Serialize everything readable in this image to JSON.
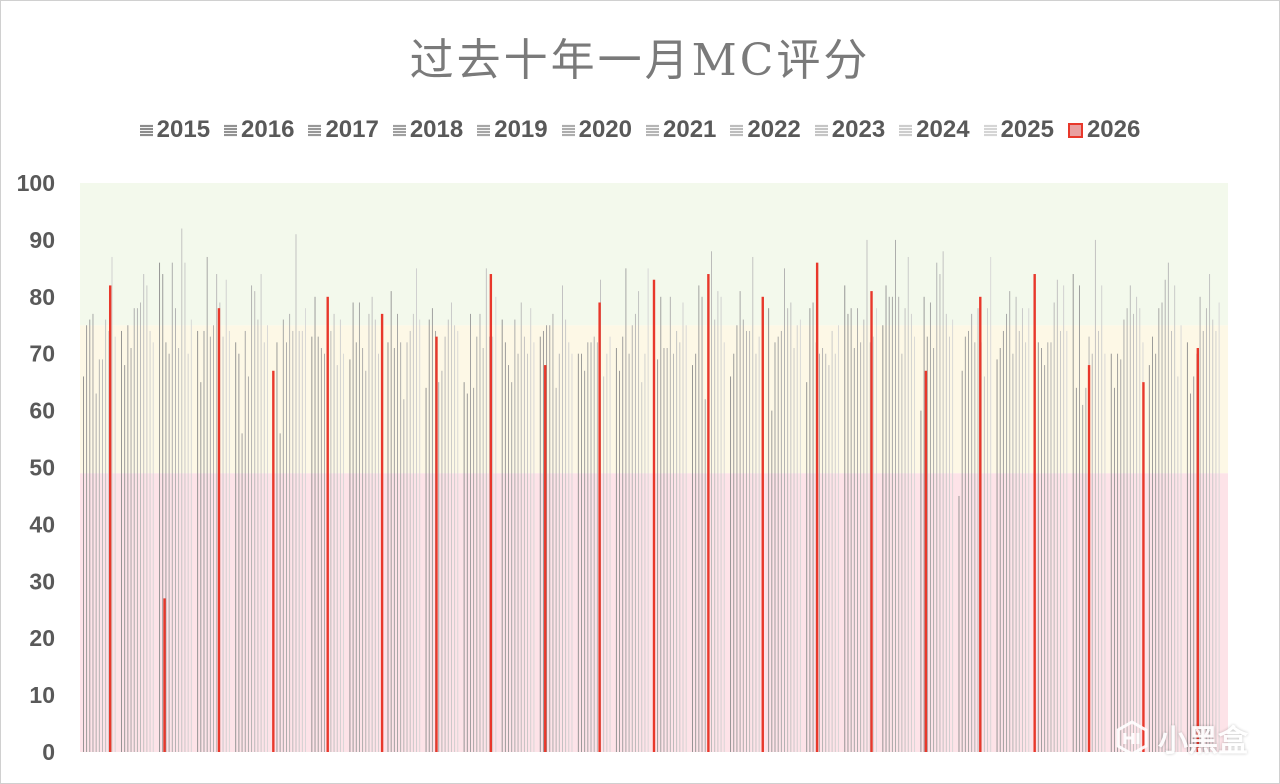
{
  "chart_data": {
    "type": "bar",
    "title": "过去十年一月MC评分",
    "xlabel": "",
    "ylabel": "",
    "ylim": [
      0,
      100
    ],
    "yticks": [
      0,
      10,
      20,
      30,
      40,
      50,
      60,
      70,
      80,
      90,
      100
    ],
    "grid": false,
    "legend_position": "top",
    "bands": [
      {
        "from": 0,
        "to": 49,
        "color": "#fde3e8"
      },
      {
        "from": 49,
        "to": 75,
        "color": "#fdf8e6"
      },
      {
        "from": 75,
        "to": 100,
        "color": "#f3f9ec"
      }
    ],
    "series": [
      {
        "name": "2015",
        "color": "#8c8c8c",
        "values": [
          66,
          74,
          86,
          74,
          72,
          56,
          73,
          69,
          72,
          64,
          65,
          76,
          73,
          70,
          71,
          73,
          68,
          66,
          78,
          65,
          82,
          75,
          60,
          45,
          69,
          84,
          84,
          70,
          68,
          72
        ]
      },
      {
        "name": "2016",
        "color": "#929292",
        "values": [
          75,
          68,
          84,
          65,
          70,
          72,
          80,
          79,
          81,
          76,
          63,
          72,
          74,
          70,
          67,
          69,
          70,
          70,
          60,
          78,
          77,
          82,
          80,
          67,
          71,
          72,
          64,
          64,
          73,
          63
        ]
      },
      {
        "name": "2017",
        "color": "#989898",
        "values": [
          76,
          75,
          72,
          74,
          56,
          56,
          73,
          72,
          71,
          78,
          77,
          68,
          75,
          67,
          73,
          80,
          82,
          75,
          72,
          79,
          78,
          80,
          73,
          73,
          74,
          71,
          82,
          70,
          70,
          66
        ]
      },
      {
        "name": "2018",
        "color": "#9f9f9f",
        "values": [
          77,
          71,
          70,
          87,
          74,
          76,
          71,
          79,
          77,
          74,
          64,
          65,
          75,
          72,
          85,
          71,
          80,
          81,
          73,
          72,
          71,
          80,
          79,
          74,
          77,
          68,
          61,
          69,
          78,
          70
        ]
      },
      {
        "name": "2019",
        "color": "#a6a6a6",
        "values": [
          63,
          78,
          86,
          73,
          66,
          72,
          70,
          71,
          72,
          65,
          73,
          76,
          77,
          72,
          70,
          71,
          62,
          76,
          74,
          70,
          78,
          90,
          71,
          77,
          81,
          72,
          64,
          76,
          79,
          80
        ]
      },
      {
        "name": "2020",
        "color": "#adadad",
        "values": [
          69,
          78,
          78,
          75,
          82,
          77,
          63,
          67,
          62,
          67,
          77,
          70,
          64,
          73,
          75,
          80,
          79,
          74,
          85,
          71,
          72,
          80,
          86,
          72,
          70,
          72,
          73,
          78,
          83,
          74
        ]
      },
      {
        "name": "2021",
        "color": "#b5b5b5",
        "values": [
          69,
          79,
          71,
          84,
          81,
          74,
          74,
          77,
          72,
          73,
          71,
          79,
          70,
          72,
          77,
          70,
          88,
          74,
          78,
          70,
          76,
          70,
          84,
          78,
          80,
          79,
          70,
          82,
          86,
          78
        ]
      },
      {
        "name": "2022",
        "color": "#bdbdbd",
        "values": [
          76,
          84,
          92,
          79,
          76,
          91,
          77,
          80,
          74,
          76,
          85,
          73,
          82,
          83,
          81,
          74,
          76,
          87,
          79,
          68,
          90,
          78,
          88,
          72,
          74,
          83,
          90,
          77,
          74,
          84
        ]
      },
      {
        "name": "2023",
        "color": "#c5c5c5",
        "values": [
          74,
          82,
          86,
          73,
          84,
          74,
          68,
          76,
          77,
          79,
          73,
          70,
          76,
          66,
          65,
          72,
          81,
          70,
          71,
          74,
          72,
          87,
          77,
          66,
          78,
          74,
          74,
          80,
          82,
          76
        ]
      },
      {
        "name": "2024",
        "color": "#cdcdcd",
        "values": [
          87,
          74,
          70,
          83,
          72,
          74,
          76,
          70,
          85,
          75,
          73,
          78,
          72,
          70,
          70,
          79,
          80,
          73,
          75,
          70,
          73,
          77,
          73,
          78,
          72,
          82,
          82,
          78,
          66,
          74
        ]
      },
      {
        "name": "2025",
        "color": "#d5d5d5",
        "values": [
          73,
          72,
          76,
          74,
          75,
          78,
          70,
          72,
          76,
          74,
          80,
          72,
          70,
          73,
          85,
          75,
          72,
          74,
          76,
          75,
          78,
          73,
          76,
          87,
          78,
          74,
          70,
          72,
          75,
          79
        ]
      },
      {
        "name": "2026",
        "color": "#e8382b",
        "values": [
          82,
          27,
          78,
          67,
          80,
          77,
          73,
          84,
          68,
          79,
          83,
          84,
          80,
          86,
          81,
          67,
          80,
          84,
          68,
          65,
          71
        ]
      }
    ]
  },
  "watermark": {
    "text": "小黑盒",
    "icon": "heybox-logo-icon"
  }
}
